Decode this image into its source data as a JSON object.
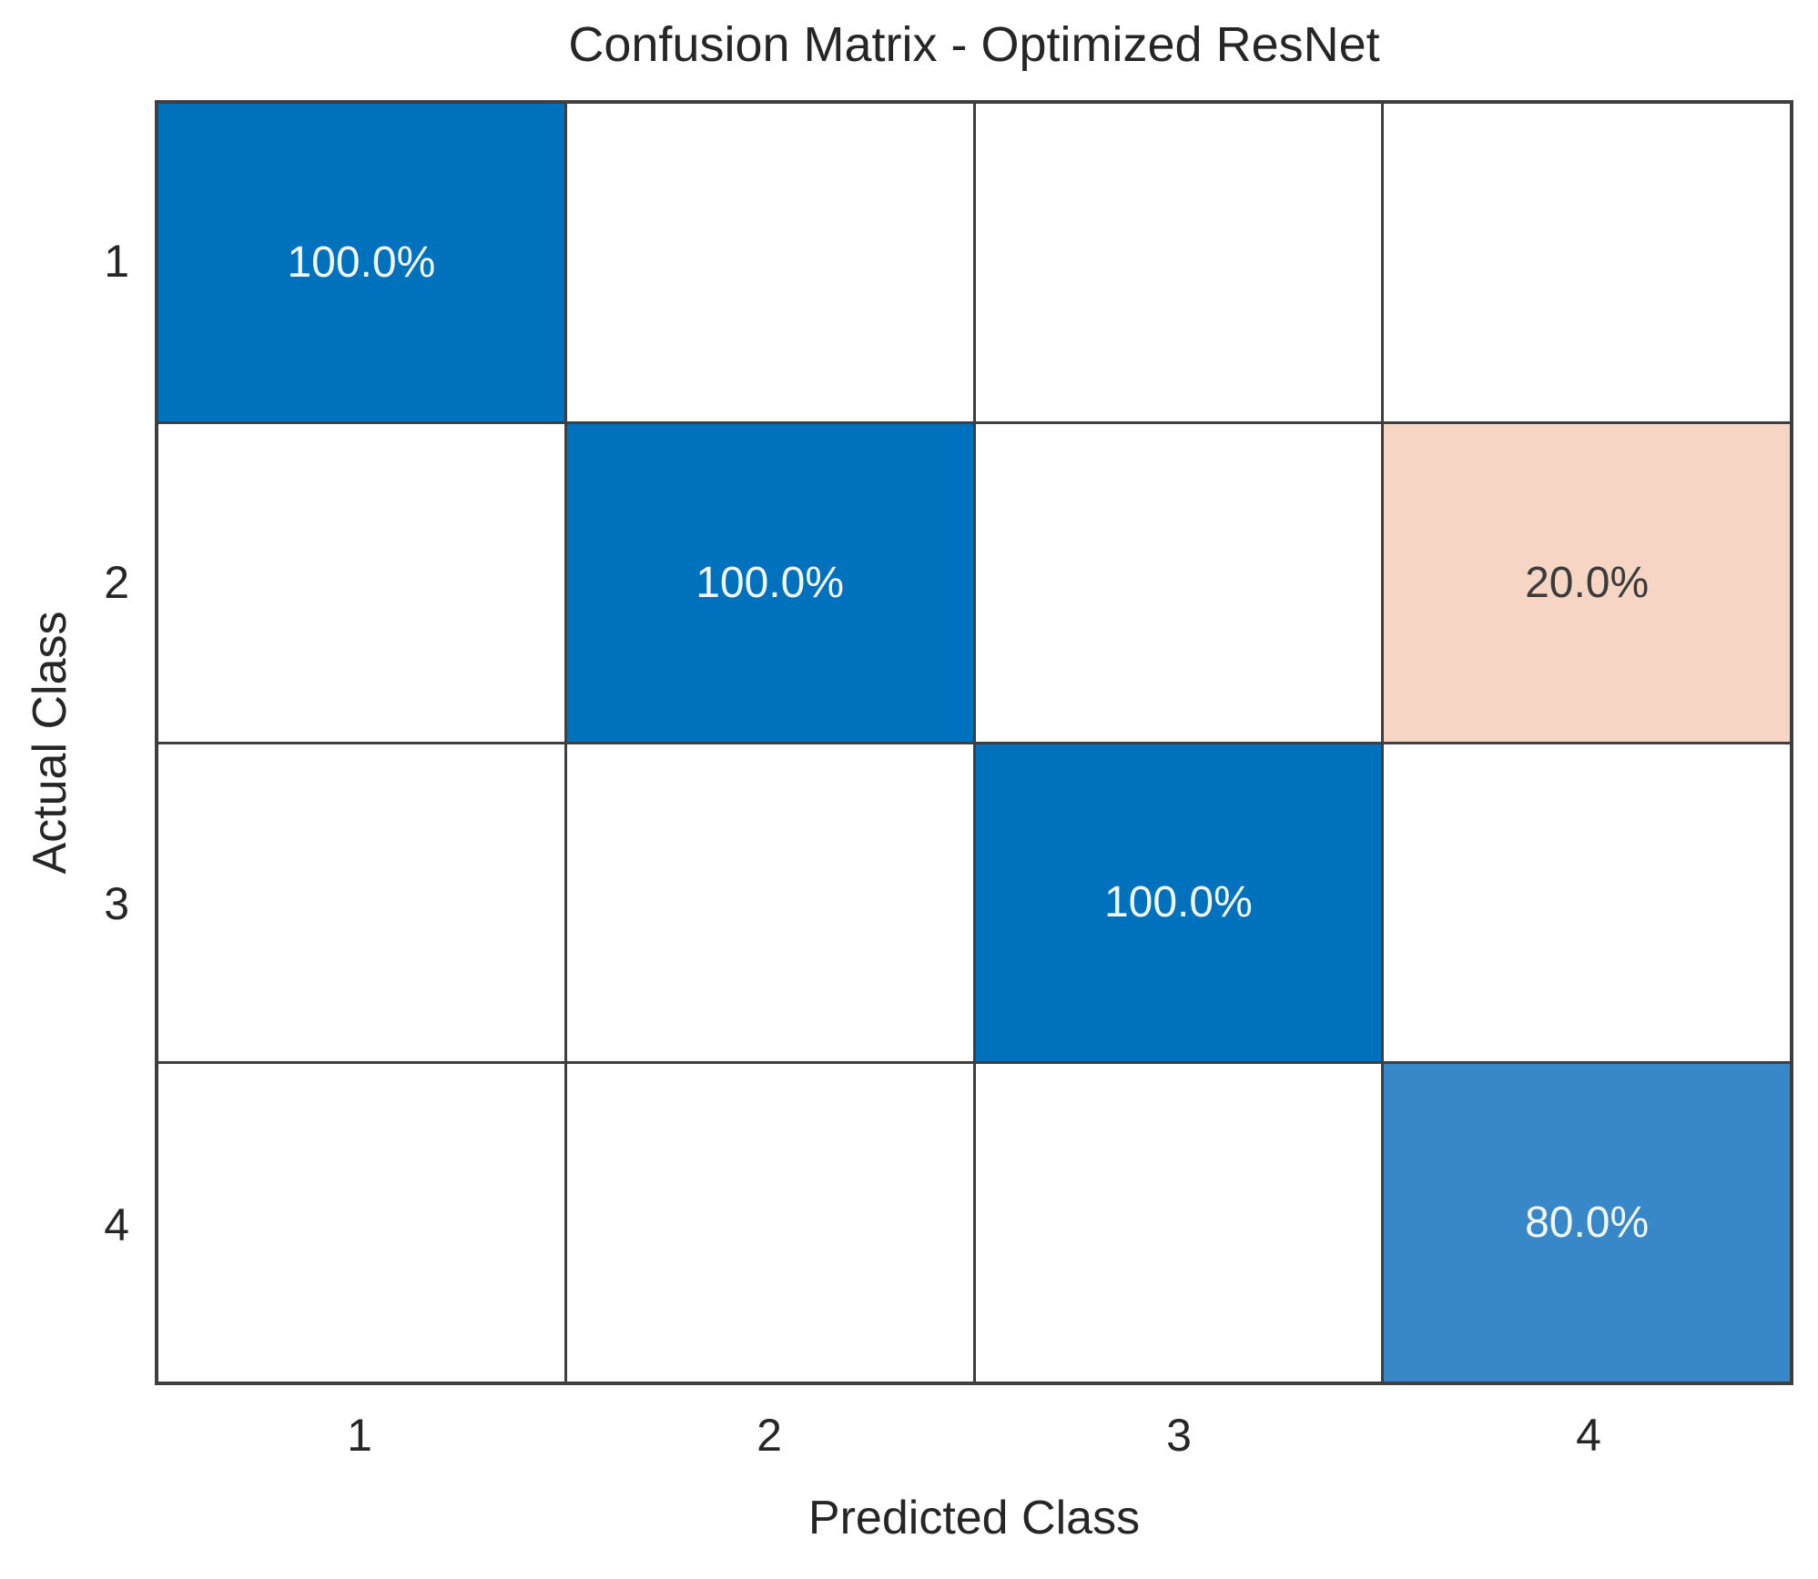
{
  "chart_data": {
    "type": "heatmap",
    "title": "Confusion Matrix - Optimized ResNet",
    "xlabel": "Predicted Class",
    "ylabel": "Actual Class",
    "x_categories": [
      "1",
      "2",
      "3",
      "4"
    ],
    "y_categories": [
      "1",
      "2",
      "3",
      "4"
    ],
    "values_percent": [
      [
        100.0,
        0,
        0,
        0
      ],
      [
        0,
        100.0,
        0,
        20.0
      ],
      [
        0,
        0,
        100.0,
        0
      ],
      [
        0,
        0,
        0,
        80.0
      ]
    ],
    "cells": [
      {
        "row": 1,
        "col": 1,
        "label": "100.0%",
        "bg": "#0072BD",
        "text_color": "#f2f7fc"
      },
      {
        "row": 2,
        "col": 2,
        "label": "100.0%",
        "bg": "#0072BD",
        "text_color": "#f2f7fc"
      },
      {
        "row": 2,
        "col": 4,
        "label": "20.0%",
        "bg": "#F6D5C4",
        "text_color": "#3b3b3b"
      },
      {
        "row": 3,
        "col": 3,
        "label": "100.0%",
        "bg": "#0072BD",
        "text_color": "#f2f7fc"
      },
      {
        "row": 4,
        "col": 4,
        "label": "80.0%",
        "bg": "#3787C9",
        "text_color": "#f2f7fc"
      }
    ],
    "layout": {
      "grid_line_color": "#3f3f3f",
      "empty_cell_color": "#ffffff",
      "diagonal_full_color": "#0072BD",
      "diagonal_partial_color": "#3787C9",
      "off_diagonal_error_color": "#F6D5C4",
      "legend": "none",
      "grid": "on"
    }
  }
}
